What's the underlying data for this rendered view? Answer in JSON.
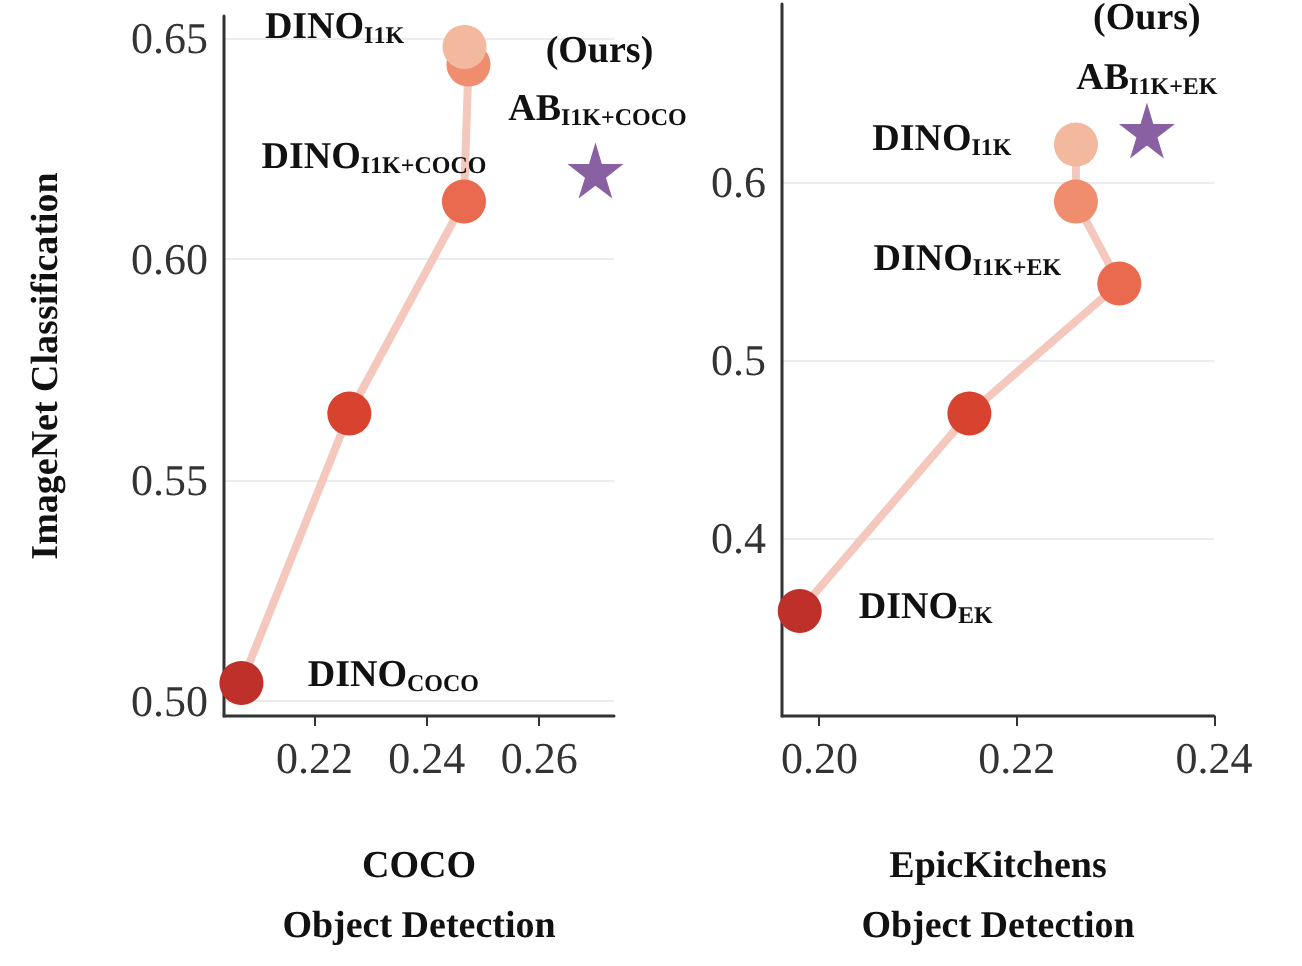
{
  "chart_data": [
    {
      "type": "line",
      "xlabel": "COCO\nObject Detection",
      "ylabel": "ImageNet Classification",
      "xlim": [
        0.2039,
        0.2733
      ],
      "ylim": [
        0.4965,
        0.655
      ],
      "xticks": [
        0.22,
        0.24,
        0.26
      ],
      "yticks": [
        {
          "value": 0.5,
          "label": "0.50"
        },
        0.55,
        {
          "value": 0.6,
          "label": "0.60"
        },
        0.65
      ],
      "grid": "y",
      "marker": "circle",
      "line_style": "solid",
      "series": [
        {
          "color": "#f4c8bd",
          "colors": [
            "#c0302a",
            "#d8432f",
            "#e96a4e",
            "#ef8d6e",
            "#f3b99f"
          ],
          "x": [
            0.207,
            0.2262,
            0.2466,
            0.2474,
            0.2467
          ],
          "values": [
            0.504,
            0.565,
            0.613,
            0.644,
            0.648
          ]
        },
        {
          "type": "scatter",
          "marker": "star",
          "color": "#6b3a8c",
          "x": [
            0.27
          ],
          "values": [
            0.62
          ]
        }
      ],
      "annotations": [
        {
          "text": "DINO$_{I1K}$",
          "x": 0.2467,
          "y": 0.648
        },
        {
          "text": "(Ours)",
          "x": 0.27,
          "y": 0.62
        },
        {
          "text": "AB$_{I1K+COCO}$",
          "x": 0.27,
          "y": 0.62
        },
        {
          "text": "DINO$_{I1K+COCO}$",
          "x": 0.2466,
          "y": 0.613
        },
        {
          "text": "DINO$_{COCO}$",
          "x": 0.207,
          "y": 0.504
        }
      ]
    },
    {
      "type": "line",
      "xlabel": "EpicKitchens\nObject Detection",
      "xlim": [
        0.1962,
        0.24
      ],
      "ylim": [
        0.3,
        0.7
      ],
      "xticks": [
        {
          "value": 0.2,
          "label": "0.20"
        },
        0.22,
        0.24
      ],
      "yticks": [
        0.4,
        0.5,
        0.6
      ],
      "grid": "y",
      "marker": "circle",
      "line_style": "solid",
      "series": [
        {
          "color": "#f4c8bd",
          "colors": [
            "#c0302a",
            "#d8432f",
            "#e96a4e",
            "#ef8d6e",
            "#f3b99f"
          ],
          "x": [
            0.198,
            0.2152,
            0.2304,
            0.226,
            0.226
          ],
          "values": [
            0.359,
            0.47,
            0.543,
            0.589,
            0.621
          ]
        },
        {
          "type": "scatter",
          "marker": "star",
          "color": "#6b3a8c",
          "x": [
            0.2332
          ],
          "values": [
            0.629
          ]
        }
      ],
      "annotations": [
        {
          "text": "(Ours)",
          "x": 0.2332,
          "y": 0.629
        },
        {
          "text": "AB$_{I1K+EK}$",
          "x": 0.2332,
          "y": 0.629
        },
        {
          "text": "DINO$_{I1K}$",
          "x": 0.226,
          "y": 0.621
        },
        {
          "text": "DINO$_{I1K+EK}$",
          "x": 0.2304,
          "y": 0.543
        },
        {
          "text": "DINO$_{EK}$",
          "x": 0.198,
          "y": 0.359
        }
      ]
    }
  ]
}
